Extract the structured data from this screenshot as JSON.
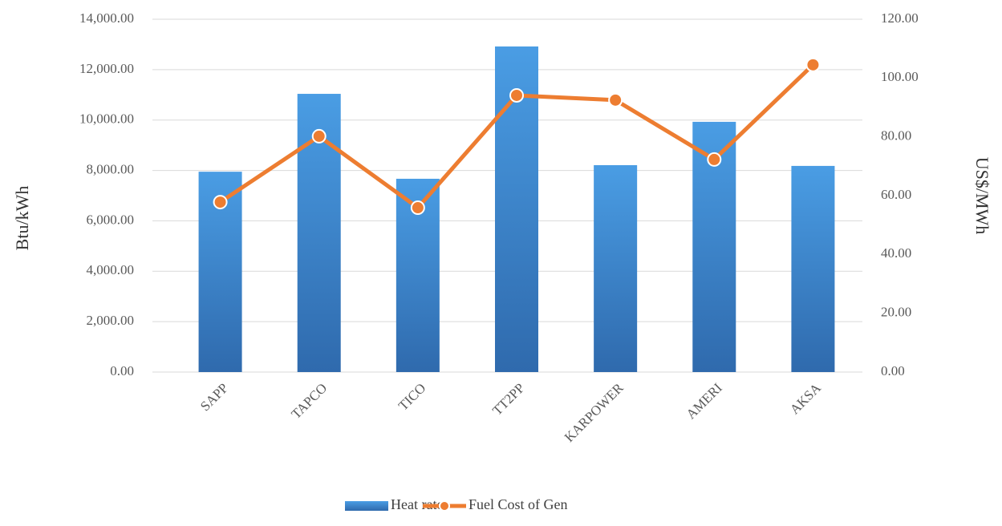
{
  "chart_data": {
    "type": "bar_line",
    "categories": [
      "SAPP",
      "TAPCO",
      "TICO",
      "TT2PP",
      "KARPOWER",
      "AMERI",
      "AKSA"
    ],
    "ylabel": "Btu/kWh",
    "y2label": "US$/MWh",
    "ylim": [
      0,
      14000
    ],
    "yticks": [
      {
        "value": 0,
        "label": "0.00"
      },
      {
        "value": 2000,
        "label": "2,000.00"
      },
      {
        "value": 4000,
        "label": "4,000.00"
      },
      {
        "value": 6000,
        "label": "6,000.00"
      },
      {
        "value": 8000,
        "label": "8,000.00"
      },
      {
        "value": 10000,
        "label": "10,000.00"
      },
      {
        "value": 12000,
        "label": "12,000.00"
      },
      {
        "value": 14000,
        "label": "14,000.00"
      }
    ],
    "y2lim": [
      0,
      120
    ],
    "y2ticks": [
      {
        "value": 0,
        "label": "0.00"
      },
      {
        "value": 20,
        "label": "20.00"
      },
      {
        "value": 40,
        "label": "40.00"
      },
      {
        "value": 60,
        "label": "60.00"
      },
      {
        "value": 80,
        "label": "80.00"
      },
      {
        "value": 100,
        "label": "100.00"
      },
      {
        "value": 120,
        "label": "120.00"
      }
    ],
    "grid": true,
    "series": [
      {
        "name": "Heat rate",
        "type": "bar",
        "color": "#3f87d0",
        "values": [
          7950,
          11040,
          7670,
          12920,
          8210,
          9930,
          8180
        ]
      },
      {
        "name": "Fuel Cost of Gen",
        "type": "line",
        "axis": "y2",
        "color": "#ed7d31",
        "values": [
          57.8,
          80.2,
          55.9,
          94.1,
          92.5,
          72.3,
          104.5
        ]
      }
    ]
  }
}
